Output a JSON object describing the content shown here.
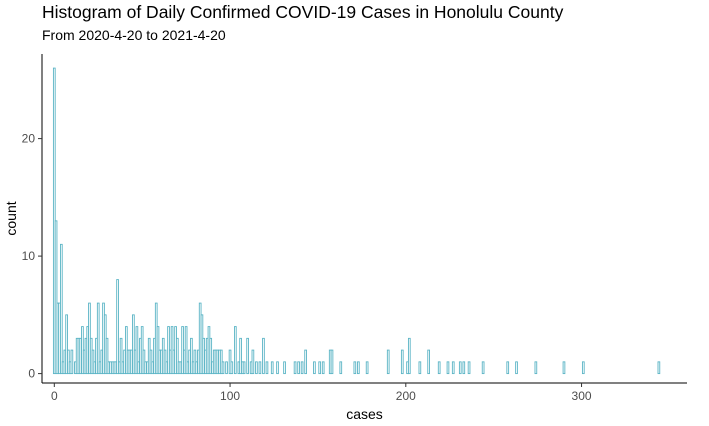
{
  "chart_data": {
    "type": "bar",
    "title": "Histogram of Daily Confirmed COVID-19 Cases in Honolulu County",
    "subtitle": "From 2020-4-20 to 2021-4-20",
    "xlabel": "cases",
    "ylabel": "count",
    "xlim": [
      -7,
      360
    ],
    "ylim": [
      -0.8,
      27.2
    ],
    "xticks": [
      0,
      100,
      200,
      300
    ],
    "yticks": [
      0,
      10,
      20
    ],
    "grid": false,
    "legend": "none",
    "bar_color": "#5ab4c5",
    "bins": [
      {
        "x": 0,
        "count": 26
      },
      {
        "x": 1,
        "count": 13
      },
      {
        "x": 2,
        "count": 6
      },
      {
        "x": 3,
        "count": 6
      },
      {
        "x": 4,
        "count": 11
      },
      {
        "x": 5,
        "count": 1
      },
      {
        "x": 6,
        "count": 2
      },
      {
        "x": 7,
        "count": 5
      },
      {
        "x": 8,
        "count": 2
      },
      {
        "x": 9,
        "count": 1
      },
      {
        "x": 10,
        "count": 2
      },
      {
        "x": 12,
        "count": 1
      },
      {
        "x": 13,
        "count": 3
      },
      {
        "x": 14,
        "count": 3
      },
      {
        "x": 15,
        "count": 3
      },
      {
        "x": 16,
        "count": 4
      },
      {
        "x": 17,
        "count": 2
      },
      {
        "x": 18,
        "count": 3
      },
      {
        "x": 19,
        "count": 4
      },
      {
        "x": 20,
        "count": 6
      },
      {
        "x": 21,
        "count": 3
      },
      {
        "x": 22,
        "count": 2
      },
      {
        "x": 23,
        "count": 1
      },
      {
        "x": 24,
        "count": 3
      },
      {
        "x": 25,
        "count": 6
      },
      {
        "x": 26,
        "count": 1
      },
      {
        "x": 27,
        "count": 2
      },
      {
        "x": 28,
        "count": 6
      },
      {
        "x": 29,
        "count": 5
      },
      {
        "x": 30,
        "count": 3
      },
      {
        "x": 31,
        "count": 1
      },
      {
        "x": 32,
        "count": 1
      },
      {
        "x": 33,
        "count": 1
      },
      {
        "x": 34,
        "count": 1
      },
      {
        "x": 35,
        "count": 1
      },
      {
        "x": 36,
        "count": 8
      },
      {
        "x": 37,
        "count": 1
      },
      {
        "x": 38,
        "count": 3
      },
      {
        "x": 39,
        "count": 1
      },
      {
        "x": 40,
        "count": 2
      },
      {
        "x": 41,
        "count": 4
      },
      {
        "x": 42,
        "count": 2
      },
      {
        "x": 43,
        "count": 2
      },
      {
        "x": 44,
        "count": 2
      },
      {
        "x": 45,
        "count": 5
      },
      {
        "x": 46,
        "count": 2
      },
      {
        "x": 47,
        "count": 4
      },
      {
        "x": 48,
        "count": 1
      },
      {
        "x": 49,
        "count": 3
      },
      {
        "x": 50,
        "count": 4
      },
      {
        "x": 51,
        "count": 2
      },
      {
        "x": 52,
        "count": 1
      },
      {
        "x": 53,
        "count": 1
      },
      {
        "x": 54,
        "count": 3
      },
      {
        "x": 55,
        "count": 2
      },
      {
        "x": 56,
        "count": 1
      },
      {
        "x": 57,
        "count": 3
      },
      {
        "x": 58,
        "count": 6
      },
      {
        "x": 59,
        "count": 4
      },
      {
        "x": 60,
        "count": 2
      },
      {
        "x": 61,
        "count": 2
      },
      {
        "x": 62,
        "count": 3
      },
      {
        "x": 63,
        "count": 2
      },
      {
        "x": 64,
        "count": 1
      },
      {
        "x": 65,
        "count": 4
      },
      {
        "x": 66,
        "count": 2
      },
      {
        "x": 67,
        "count": 4
      },
      {
        "x": 68,
        "count": 2
      },
      {
        "x": 69,
        "count": 4
      },
      {
        "x": 70,
        "count": 3
      },
      {
        "x": 71,
        "count": 1
      },
      {
        "x": 72,
        "count": 1
      },
      {
        "x": 73,
        "count": 4
      },
      {
        "x": 74,
        "count": 2
      },
      {
        "x": 75,
        "count": 4
      },
      {
        "x": 76,
        "count": 1
      },
      {
        "x": 77,
        "count": 2
      },
      {
        "x": 78,
        "count": 3
      },
      {
        "x": 79,
        "count": 1
      },
      {
        "x": 80,
        "count": 2
      },
      {
        "x": 81,
        "count": 1
      },
      {
        "x": 82,
        "count": 2
      },
      {
        "x": 83,
        "count": 6
      },
      {
        "x": 84,
        "count": 5
      },
      {
        "x": 85,
        "count": 3
      },
      {
        "x": 86,
        "count": 2
      },
      {
        "x": 87,
        "count": 3
      },
      {
        "x": 88,
        "count": 4
      },
      {
        "x": 89,
        "count": 3
      },
      {
        "x": 90,
        "count": 1
      },
      {
        "x": 91,
        "count": 2
      },
      {
        "x": 92,
        "count": 2
      },
      {
        "x": 93,
        "count": 2
      },
      {
        "x": 94,
        "count": 2
      },
      {
        "x": 95,
        "count": 2
      },
      {
        "x": 96,
        "count": 1
      },
      {
        "x": 98,
        "count": 1
      },
      {
        "x": 100,
        "count": 2
      },
      {
        "x": 101,
        "count": 1
      },
      {
        "x": 103,
        "count": 4
      },
      {
        "x": 105,
        "count": 1
      },
      {
        "x": 106,
        "count": 3
      },
      {
        "x": 107,
        "count": 1
      },
      {
        "x": 108,
        "count": 1
      },
      {
        "x": 110,
        "count": 3
      },
      {
        "x": 112,
        "count": 1
      },
      {
        "x": 113,
        "count": 2
      },
      {
        "x": 115,
        "count": 1
      },
      {
        "x": 117,
        "count": 1
      },
      {
        "x": 119,
        "count": 3
      },
      {
        "x": 121,
        "count": 1
      },
      {
        "x": 124,
        "count": 1
      },
      {
        "x": 127,
        "count": 1
      },
      {
        "x": 131,
        "count": 1
      },
      {
        "x": 137,
        "count": 1
      },
      {
        "x": 139,
        "count": 1
      },
      {
        "x": 141,
        "count": 1
      },
      {
        "x": 143,
        "count": 2
      },
      {
        "x": 148,
        "count": 1
      },
      {
        "x": 151,
        "count": 1
      },
      {
        "x": 153,
        "count": 1
      },
      {
        "x": 157,
        "count": 2
      },
      {
        "x": 158,
        "count": 2
      },
      {
        "x": 163,
        "count": 1
      },
      {
        "x": 171,
        "count": 1
      },
      {
        "x": 173,
        "count": 1
      },
      {
        "x": 178,
        "count": 1
      },
      {
        "x": 190,
        "count": 2
      },
      {
        "x": 198,
        "count": 2
      },
      {
        "x": 201,
        "count": 1
      },
      {
        "x": 202,
        "count": 3
      },
      {
        "x": 208,
        "count": 1
      },
      {
        "x": 213,
        "count": 2
      },
      {
        "x": 219,
        "count": 1
      },
      {
        "x": 224,
        "count": 1
      },
      {
        "x": 227,
        "count": 1
      },
      {
        "x": 231,
        "count": 1
      },
      {
        "x": 233,
        "count": 1
      },
      {
        "x": 236,
        "count": 1
      },
      {
        "x": 244,
        "count": 1
      },
      {
        "x": 258,
        "count": 1
      },
      {
        "x": 263,
        "count": 1
      },
      {
        "x": 274,
        "count": 1
      },
      {
        "x": 290,
        "count": 1
      },
      {
        "x": 301,
        "count": 1
      },
      {
        "x": 344,
        "count": 1
      }
    ]
  }
}
